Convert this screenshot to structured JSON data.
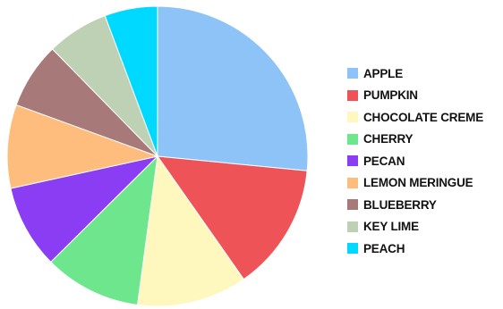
{
  "chart_data": {
    "type": "pie",
    "start_angle_deg": 0,
    "direction": "clockwise",
    "legend_position": "right",
    "slices": [
      {
        "label": "APPLE",
        "value": 28.0,
        "color": "#8EC3F7"
      },
      {
        "label": "PUMPKIN",
        "value": 14.5,
        "color": "#EE5457"
      },
      {
        "label": "CHOCOLATE CREME",
        "value": 12.5,
        "color": "#FEF8BF"
      },
      {
        "label": "CHERRY",
        "value": 11.0,
        "color": "#6EE68D"
      },
      {
        "label": "PECAN",
        "value": 9.5,
        "color": "#8A3DF2"
      },
      {
        "label": "LEMON MERINGUE",
        "value": 9.5,
        "color": "#FEBD7D"
      },
      {
        "label": "BLUEBERRY",
        "value": 7.5,
        "color": "#A77979"
      },
      {
        "label": "KEY LIME",
        "value": 7.0,
        "color": "#BED1B4"
      },
      {
        "label": "PEACH",
        "value": 6.0,
        "color": "#00D9FF"
      }
    ]
  }
}
